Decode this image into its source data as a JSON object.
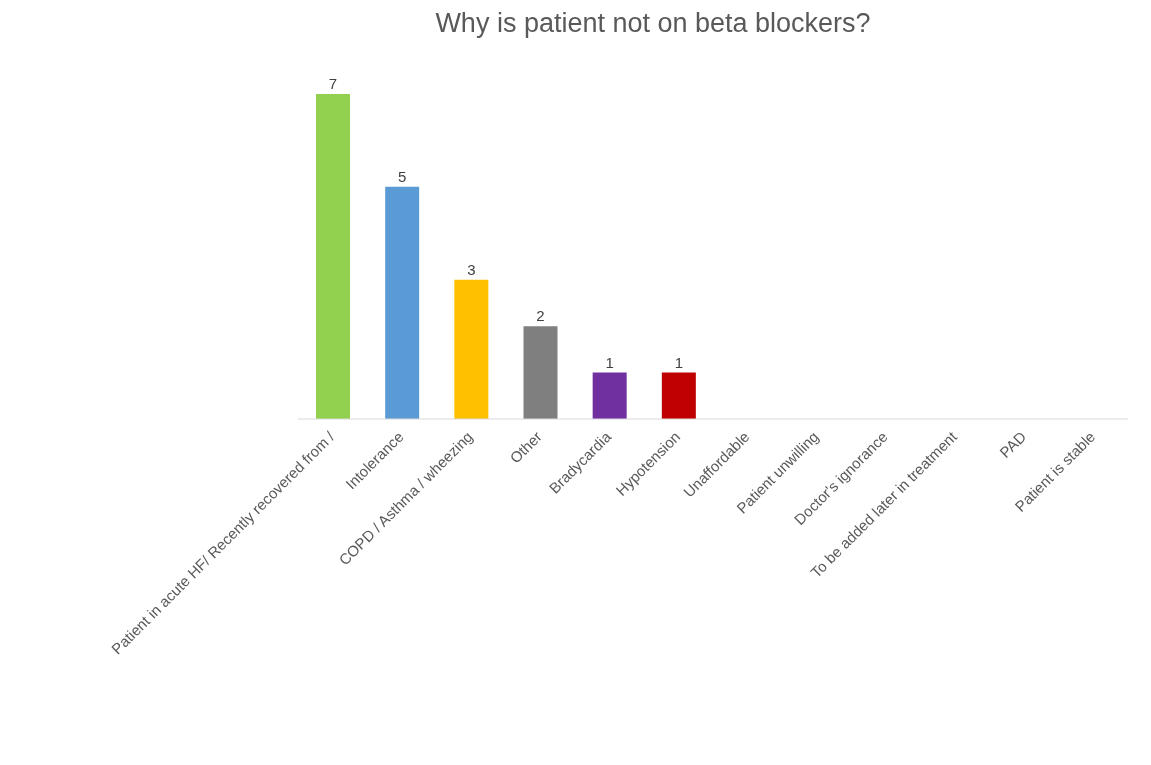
{
  "chart_data": {
    "type": "bar",
    "title": "Why is patient not on beta blockers?",
    "categories": [
      "Patient in acute HF/ Recently recovered from /",
      "Intolerance",
      "COPD / Asthma / wheezing",
      "Other",
      "Bradycardia",
      "Hypotension",
      "Unaffordable",
      "Patient unwilling",
      "Doctor's ignorance",
      "To be added later in treatment",
      "PAD",
      "Patient is stable"
    ],
    "values": [
      7,
      5,
      3,
      2,
      1,
      1,
      0,
      0,
      0,
      0,
      0,
      0
    ],
    "value_labels": [
      "7",
      "5",
      "3",
      "2",
      "1",
      "1",
      null,
      null,
      null,
      null,
      null,
      null
    ],
    "colors": [
      "#92d050",
      "#5b9bd5",
      "#ffc000",
      "#7f7f7f",
      "#7030a0",
      "#c00000",
      null,
      null,
      null,
      null,
      null,
      null
    ],
    "grid": false,
    "legend": false
  }
}
